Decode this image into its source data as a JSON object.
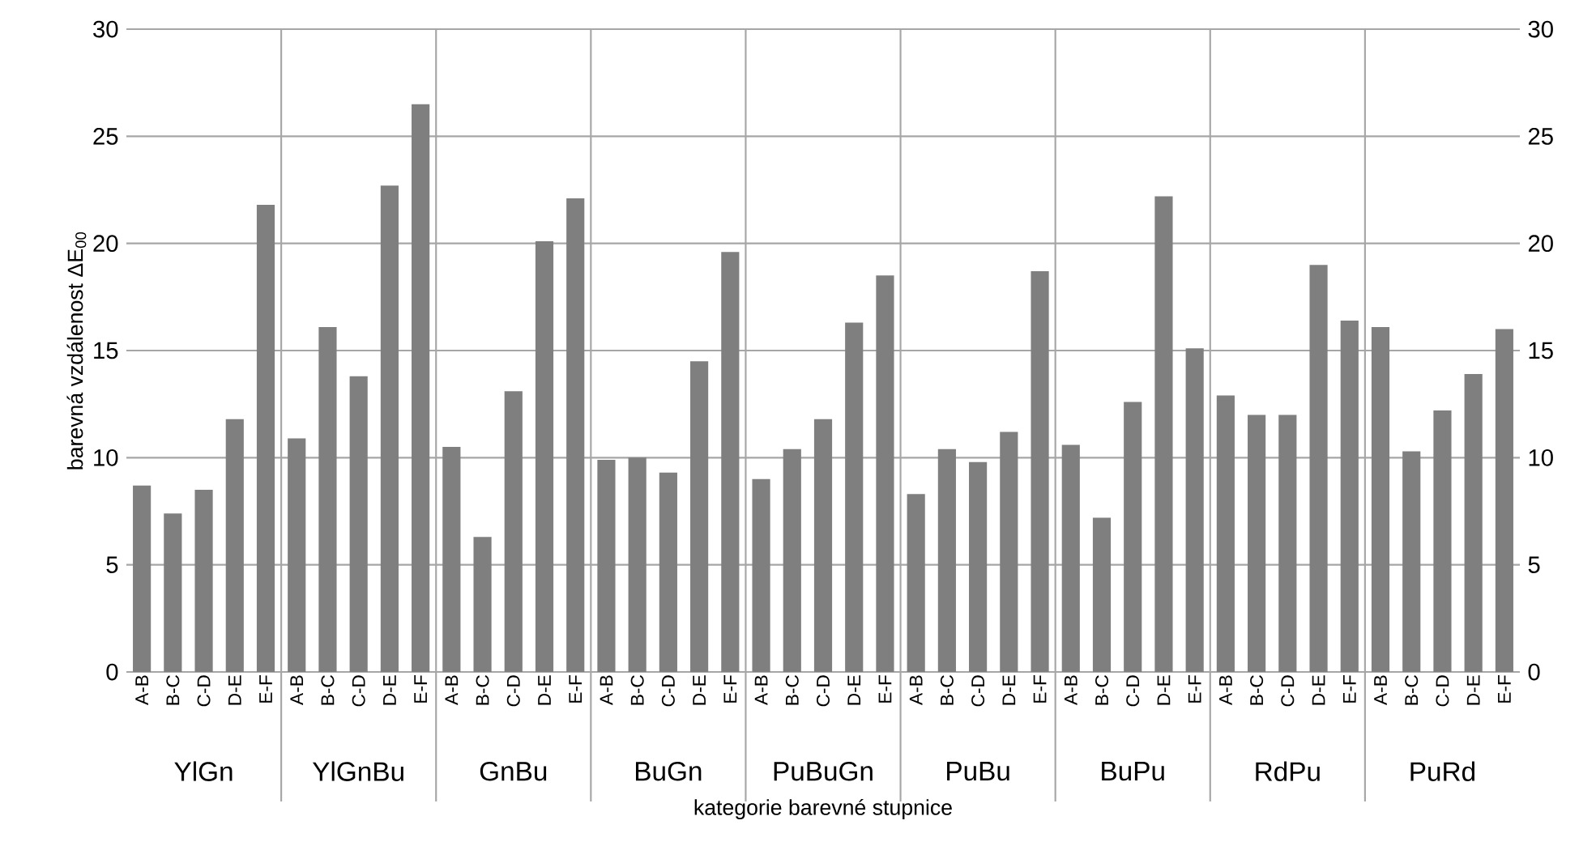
{
  "chart_data": {
    "type": "bar",
    "xlabel": "kategorie barevné stupnice",
    "ylabel": "barevná vzdálenost ΔE$_{00}$",
    "categories": [
      "A-B",
      "B-C",
      "C-D",
      "D-E",
      "E-F",
      "A-B",
      "B-C",
      "C-D",
      "D-E",
      "E-F",
      "A-B",
      "B-C",
      "C-D",
      "D-E",
      "E-F",
      "A-B",
      "B-C",
      "C-D",
      "D-E",
      "E-F",
      "A-B",
      "B-C",
      "C-D",
      "D-E",
      "E-F",
      "A-B",
      "B-C",
      "C-D",
      "D-E",
      "E-F",
      "A-B",
      "B-C",
      "C-D",
      "D-E",
      "E-F",
      "A-B",
      "B-C",
      "C-D",
      "D-E",
      "E-F",
      "A-B",
      "B-C",
      "C-D",
      "D-E",
      "E-F"
    ],
    "values": [
      8.7,
      7.4,
      8.5,
      11.8,
      21.8,
      10.9,
      16.1,
      13.8,
      22.7,
      26.5,
      10.5,
      6.3,
      13.1,
      20.1,
      22.1,
      9.9,
      10.0,
      9.3,
      14.5,
      19.6,
      9.0,
      10.4,
      11.8,
      16.3,
      18.5,
      8.3,
      10.4,
      9.8,
      11.2,
      18.7,
      10.6,
      7.2,
      12.6,
      22.2,
      15.1,
      12.9,
      12.0,
      12.0,
      19.0,
      16.4,
      16.1,
      10.3,
      12.2,
      13.9,
      16.0
    ],
    "color": "#7f7f7f",
    "annotations": [
      "YlGn",
      "YlGnBu",
      "GnBu",
      "BuGn",
      "PuBuGn",
      "PuBu",
      "BuPu",
      "RdPu",
      "PuRd"
    ],
    "ylim": [
      0,
      30
    ],
    "yticks": [
      0,
      5,
      10,
      15,
      20,
      25,
      30
    ],
    "y2lim": [
      0,
      30
    ],
    "y2ticks": [
      0,
      5,
      10,
      15,
      20,
      25,
      30
    ],
    "grid": "y"
  }
}
